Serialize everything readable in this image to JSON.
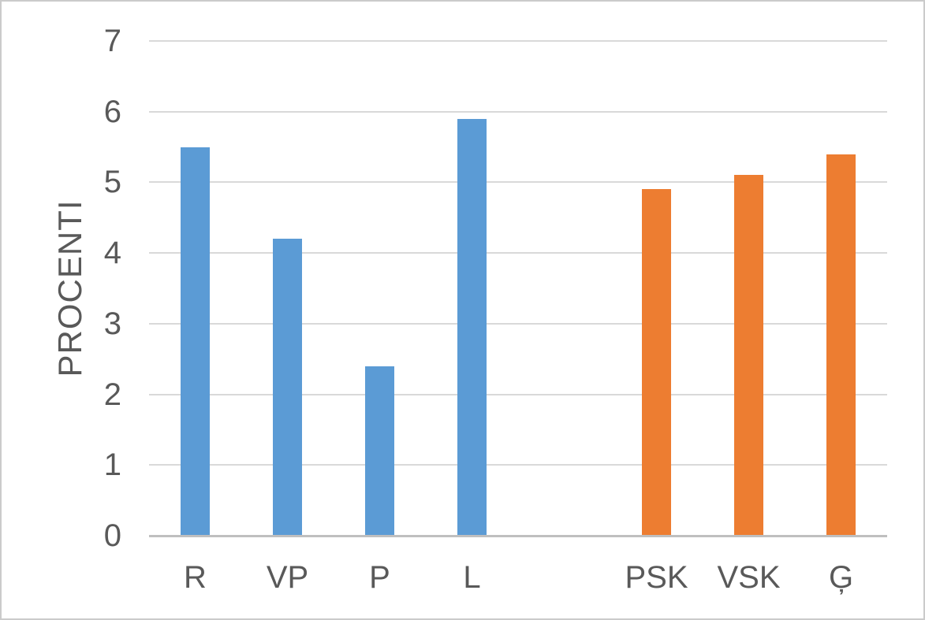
{
  "chart_data": {
    "type": "bar",
    "title": "",
    "ylabel": "PROCENTI",
    "xlabel": "",
    "ylim": [
      0,
      7
    ],
    "yticks": [
      0,
      1,
      2,
      3,
      4,
      5,
      6,
      7
    ],
    "grid": true,
    "legend_position": "none",
    "categories": [
      "R",
      "VP",
      "P",
      "L",
      "",
      "PSK",
      "VSK",
      "Ģ"
    ],
    "values": [
      5.5,
      4.2,
      2.4,
      5.9,
      null,
      4.9,
      5.1,
      5.4
    ],
    "bar_colors": [
      "#5B9BD5",
      "#5B9BD5",
      "#5B9BD5",
      "#5B9BD5",
      null,
      "#ED7D31",
      "#ED7D31",
      "#ED7D31"
    ],
    "groups": [
      {
        "name": "blue-group",
        "color": "#5B9BD5",
        "categories": [
          "R",
          "VP",
          "P",
          "L"
        ],
        "values": [
          5.5,
          4.2,
          2.4,
          5.9
        ]
      },
      {
        "name": "orange-group",
        "color": "#ED7D31",
        "categories": [
          "PSK",
          "VSK",
          "Ģ"
        ],
        "values": [
          4.9,
          5.1,
          5.4
        ]
      }
    ]
  },
  "colors": {
    "bar_blue": "#5B9BD5",
    "bar_orange": "#ED7D31",
    "gridline": "#D9D9D9",
    "axis_line": "#BFBFBF",
    "text": "#595959",
    "background": "#FFFFFF",
    "frame_border": "#CBCBCB"
  }
}
